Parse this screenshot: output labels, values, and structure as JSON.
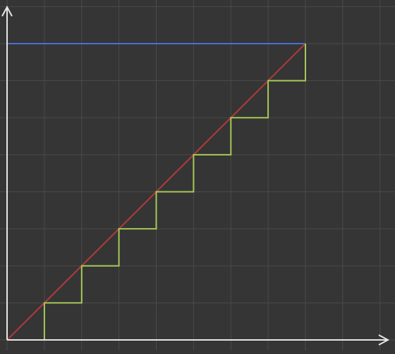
{
  "diagram": {
    "background": "#353535",
    "grid_color": "#4a4a4a",
    "axis_color": "#e6e6e6",
    "diagonal_color": "#b23a3a",
    "staircase_color": "#a7c957",
    "frame_color": "#4a6fd6",
    "grid_cells_x": 11,
    "grid_cells_y": 9,
    "staircase_steps": 8
  }
}
